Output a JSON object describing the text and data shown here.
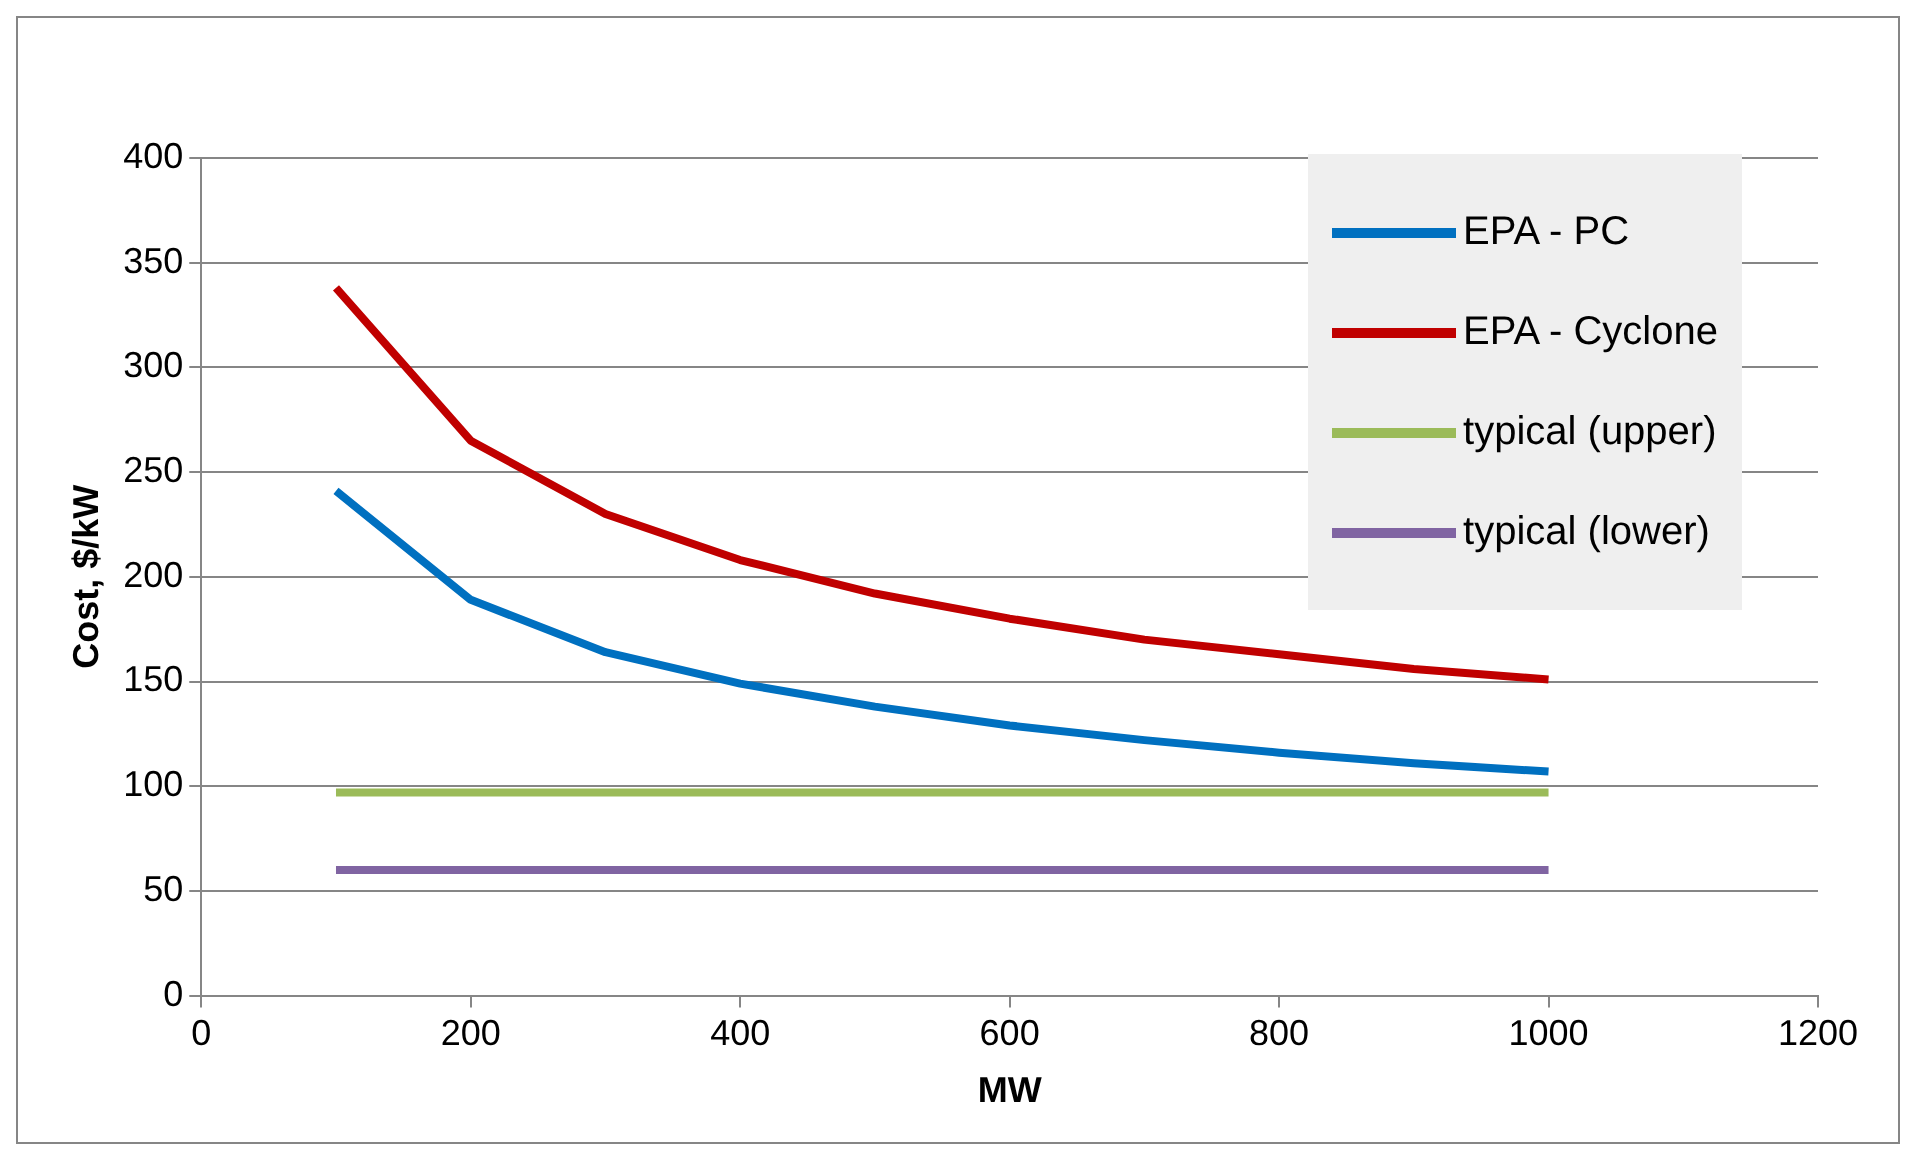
{
  "chart_data": {
    "type": "line",
    "xlabel": "MW",
    "ylabel": "Cost, $/kW",
    "xlim": [
      0,
      1200
    ],
    "xticks": [
      0,
      200,
      400,
      600,
      800,
      1000,
      1200
    ],
    "ylim": [
      0,
      400
    ],
    "yticks": [
      0,
      50,
      100,
      150,
      200,
      250,
      300,
      350,
      400
    ],
    "grid": "y",
    "legend": "top right",
    "marker": "none",
    "line_style": "solid",
    "x": [
      100,
      200,
      300,
      400,
      500,
      600,
      700,
      800,
      900,
      1000
    ],
    "series": [
      {
        "name": "EPA - PC",
        "color": "#0070c0",
        "values": [
          241,
          189,
          164,
          149,
          138,
          129,
          122,
          116,
          111,
          107
        ]
      },
      {
        "name": "EPA - Cyclone",
        "color": "#c00000",
        "values": [
          338,
          265,
          230,
          208,
          192,
          180,
          170,
          163,
          156,
          151
        ]
      },
      {
        "name": "typical (upper)",
        "color": "#9bbb59",
        "values": [
          97,
          97,
          97,
          97,
          97,
          97,
          97,
          97,
          97,
          97
        ]
      },
      {
        "name": "typical (lower)",
        "color": "#8064a2",
        "values": [
          60,
          60,
          60,
          60,
          60,
          60,
          60,
          60,
          60,
          60
        ]
      }
    ]
  }
}
